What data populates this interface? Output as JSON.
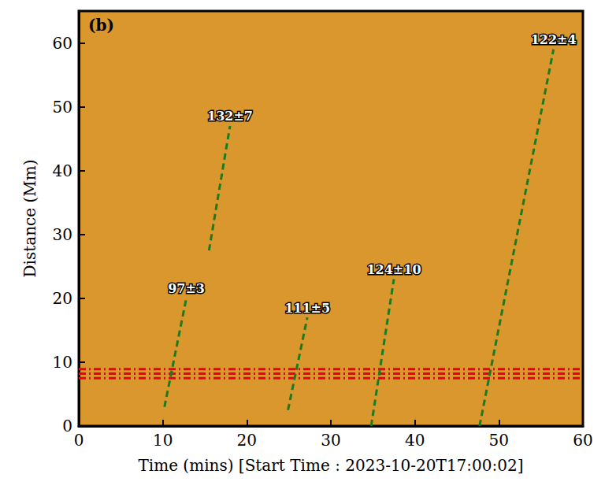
{
  "chart_data": {
    "type": "line",
    "panel_label": "(b)",
    "xlabel": "Time (mins) [Start Time : 2023-10-20T17:00:02]",
    "ylabel": "Distance (Mm)",
    "xlim": [
      0,
      60
    ],
    "xticks": [
      0,
      10,
      20,
      30,
      40,
      50,
      60
    ],
    "ylim": [
      0,
      65
    ],
    "yticks": [
      0,
      10,
      20,
      30,
      40,
      50,
      60
    ],
    "grid": false,
    "series": [
      {
        "label": "97±3",
        "x": [
          10.2,
          12.8
        ],
        "values": [
          3,
          20
        ],
        "color": "#1f7a1f",
        "line_style": "dashed"
      },
      {
        "label": "132±7",
        "x": [
          15.5,
          18.0
        ],
        "values": [
          27.5,
          47
        ],
        "color": "#1f7a1f",
        "line_style": "dashed"
      },
      {
        "label": "111±5",
        "x": [
          24.9,
          27.2
        ],
        "values": [
          2.5,
          17
        ],
        "color": "#1f7a1f",
        "line_style": "dashed"
      },
      {
        "label": "124±10",
        "x": [
          34.8,
          37.5
        ],
        "values": [
          0,
          23
        ],
        "color": "#1f7a1f",
        "line_style": "dashed"
      },
      {
        "label": "122±4",
        "x": [
          47.7,
          56.5
        ],
        "values": [
          0,
          59
        ],
        "color": "#1f7a1f",
        "line_style": "dashed"
      },
      {
        "x": [
          0,
          60
        ],
        "values": [
          7.5,
          7.5
        ],
        "color": "#e8001c",
        "line_style": "dashdot"
      },
      {
        "x": [
          0,
          60
        ],
        "values": [
          8.2,
          8.2
        ],
        "color": "#e8001c",
        "line_style": "dashdot"
      },
      {
        "x": [
          0,
          60
        ],
        "values": [
          8.9,
          8.9
        ],
        "color": "#e8001c",
        "line_style": "dashdot"
      }
    ]
  }
}
